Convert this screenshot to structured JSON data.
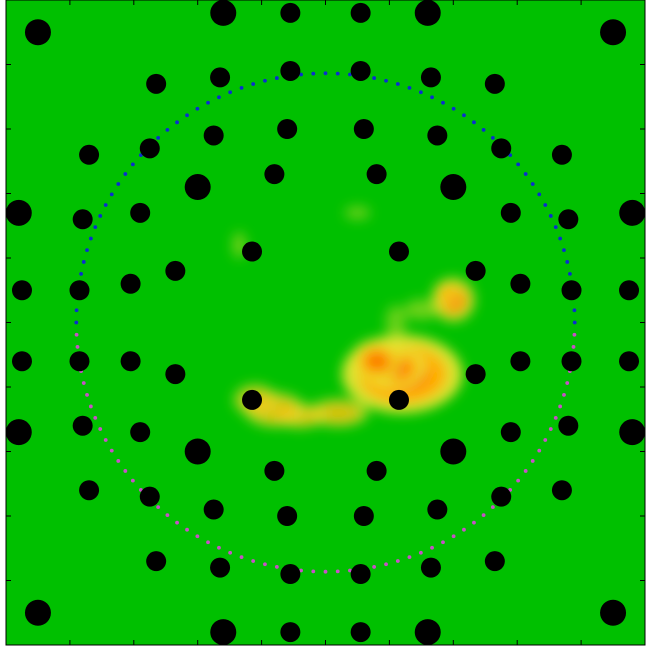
{
  "chart_data": {
    "type": "scatter",
    "title": "",
    "xlabel": "",
    "ylabel": "",
    "xlim": [
      0,
      100
    ],
    "ylim": [
      0,
      100
    ],
    "grid": false,
    "legend": "none",
    "colors": {
      "background": "#00c000",
      "markers": "#000000",
      "upper_arc": "#0a2ecf",
      "lower_arc": "#c850c8",
      "heat_low": "#e6e633",
      "heat_mid": "#ffb000",
      "heat_high": "#ff5a00"
    },
    "x_ticks": [
      0,
      10,
      20,
      30,
      40,
      50,
      60,
      70,
      80,
      90,
      100
    ],
    "y_ticks": [
      0,
      10,
      20,
      30,
      40,
      50,
      60,
      70,
      80,
      90,
      100
    ],
    "circle_overlay": {
      "center": [
        50,
        50
      ],
      "radius": 39,
      "upper_half": "blue",
      "lower_half": "magenta"
    },
    "series": [
      {
        "kind": "large-markers",
        "points": [
          [
            5,
            95
          ],
          [
            95,
            95
          ],
          [
            34,
            98
          ],
          [
            66,
            98
          ],
          [
            5,
            5
          ],
          [
            95,
            5
          ],
          [
            34,
            2
          ],
          [
            66,
            2
          ],
          [
            30,
            71
          ],
          [
            70,
            71
          ],
          [
            30,
            30
          ],
          [
            70,
            30
          ],
          [
            2,
            67
          ],
          [
            98,
            67
          ],
          [
            2,
            33
          ],
          [
            98,
            33
          ]
        ]
      },
      {
        "kind": "small-markers",
        "points": [
          [
            44.5,
            98
          ],
          [
            55.5,
            98
          ],
          [
            23.5,
            87
          ],
          [
            33.5,
            88
          ],
          [
            44.5,
            89
          ],
          [
            55.5,
            89
          ],
          [
            66.5,
            88
          ],
          [
            76.5,
            87
          ],
          [
            32.5,
            79
          ],
          [
            44,
            80
          ],
          [
            56,
            80
          ],
          [
            67.5,
            79
          ],
          [
            13,
            76
          ],
          [
            22.5,
            77
          ],
          [
            77.5,
            77
          ],
          [
            87,
            76
          ],
          [
            42,
            73
          ],
          [
            58,
            73
          ],
          [
            12,
            66
          ],
          [
            21,
            67
          ],
          [
            79,
            67
          ],
          [
            88,
            66
          ],
          [
            38.5,
            61
          ],
          [
            61.5,
            61
          ],
          [
            26.5,
            58
          ],
          [
            73.5,
            58
          ],
          [
            19.5,
            56
          ],
          [
            80.5,
            56
          ],
          [
            2.5,
            55
          ],
          [
            11.5,
            55
          ],
          [
            88.5,
            55
          ],
          [
            97.5,
            55
          ],
          [
            2.5,
            44
          ],
          [
            11.5,
            44
          ],
          [
            88.5,
            44
          ],
          [
            97.5,
            44
          ],
          [
            19.5,
            44
          ],
          [
            80.5,
            44
          ],
          [
            26.5,
            42
          ],
          [
            73.5,
            42
          ],
          [
            38.5,
            38
          ],
          [
            61.5,
            38
          ],
          [
            12,
            34
          ],
          [
            21,
            33
          ],
          [
            79,
            33
          ],
          [
            88,
            34
          ],
          [
            42,
            27
          ],
          [
            58,
            27
          ],
          [
            13,
            24
          ],
          [
            22.5,
            23
          ],
          [
            77.5,
            23
          ],
          [
            87,
            24
          ],
          [
            32.5,
            21
          ],
          [
            44,
            20
          ],
          [
            56,
            20
          ],
          [
            67.5,
            21
          ],
          [
            23.5,
            13
          ],
          [
            33.5,
            12
          ],
          [
            44.5,
            11
          ],
          [
            55.5,
            11
          ],
          [
            66.5,
            12
          ],
          [
            76.5,
            13
          ],
          [
            44.5,
            2
          ],
          [
            55.5,
            2
          ]
        ]
      },
      {
        "kind": "heat-blobs",
        "points": [
          [
            62,
            42,
            7,
            4.5,
            1.0
          ],
          [
            61,
            43,
            3.5,
            2.5,
            1.0
          ],
          [
            58,
            44,
            3,
            2.5,
            0.7
          ],
          [
            52,
            36,
            3.5,
            1.6,
            0.55
          ],
          [
            46,
            35.5,
            3,
            1.4,
            0.5
          ],
          [
            42,
            36.5,
            3.5,
            2,
            0.55
          ],
          [
            39,
            38,
            2.5,
            1.8,
            0.45
          ],
          [
            70,
            53.5,
            2.5,
            2.5,
            0.75
          ],
          [
            69,
            54.5,
            1.5,
            1.5,
            0.6
          ],
          [
            36.5,
            62,
            0.8,
            1.5,
            0.22
          ],
          [
            55,
            67,
            1.5,
            0.8,
            0.12
          ],
          [
            61,
            50,
            1.2,
            2,
            0.15
          ],
          [
            65,
            52,
            2,
            1.2,
            0.2
          ]
        ]
      }
    ]
  }
}
